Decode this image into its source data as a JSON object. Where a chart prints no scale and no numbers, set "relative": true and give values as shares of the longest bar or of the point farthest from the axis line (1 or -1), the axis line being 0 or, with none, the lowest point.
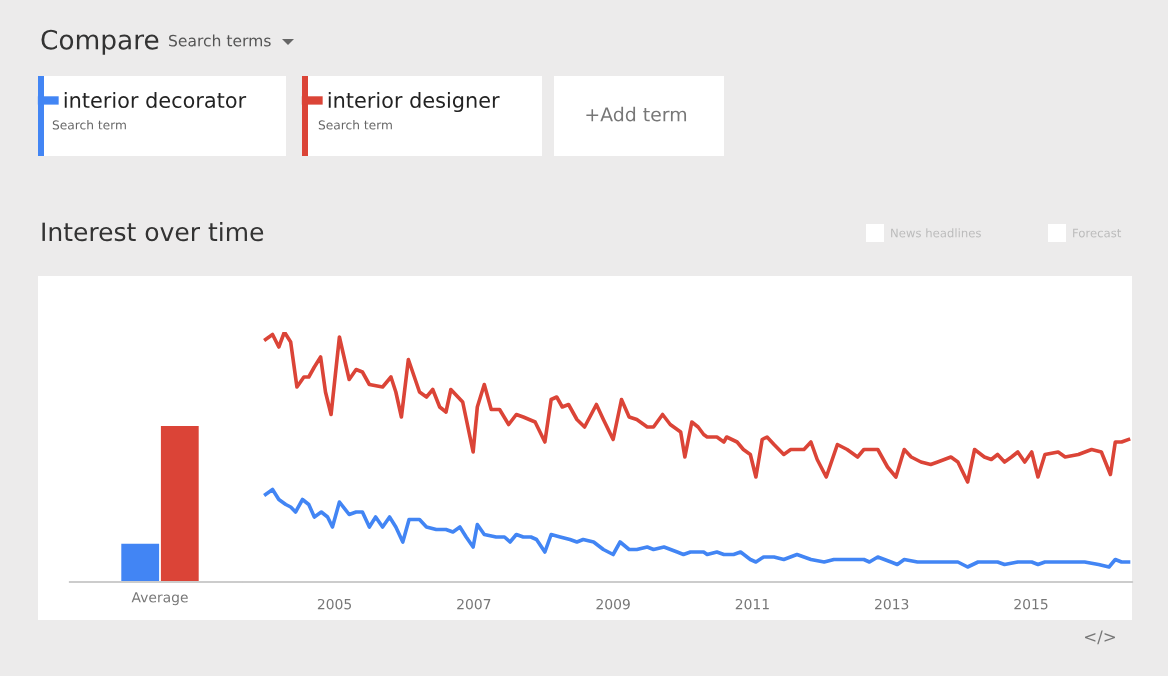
{
  "chart_data": [
    {
      "type": "other",
      "title": "Compare",
      "annotations": [
        "Search terms",
        "Search term",
        "Search term",
        "+Add term",
        "News headlines",
        "Forecast",
        "</>"
      ]
    },
    {
      "type": "bar",
      "relative": true,
      "categories": [
        "Average"
      ],
      "series": [
        {
          "color": "#4285f4",
          "values": [
            0.245
          ]
        },
        {
          "color": "#db4437",
          "values": [
            1
          ]
        }
      ]
    },
    {
      "type": "line",
      "title": "Interest over time",
      "relative": true,
      "legend": "top left",
      "xlim": [
        2003.7,
        2016.45
      ],
      "xticks": [
        2005,
        2007,
        2009,
        2011,
        2013,
        2015
      ],
      "line_style": "solid",
      "marker": "none",
      "series": [
        {
          "name": "interior decorator",
          "color": "#4285f4",
          "x": [
            2004.01,
            2004.11,
            2004.2,
            2004.3,
            2004.37,
            2004.44,
            2004.54,
            2004.63,
            2004.71,
            2004.81,
            2004.9,
            2004.97,
            2005.07,
            2005.21,
            2005.31,
            2005.4,
            2005.5,
            2005.59,
            2005.69,
            2005.79,
            2005.88,
            2005.98,
            2006.07,
            2006.22,
            2006.32,
            2006.46,
            2006.6,
            2006.7,
            2006.8,
            2006.89,
            2006.99,
            2007.05,
            2007.15,
            2007.32,
            2007.44,
            2007.52,
            2007.61,
            2007.71,
            2007.82,
            2007.9,
            2008.02,
            2008.11,
            2008.24,
            2008.38,
            2008.48,
            2008.57,
            2008.72,
            2008.86,
            2009.0,
            2009.1,
            2009.23,
            2009.34,
            2009.49,
            2009.58,
            2009.73,
            2009.92,
            2010.01,
            2010.11,
            2010.3,
            2010.35,
            2010.49,
            2010.59,
            2010.73,
            2010.83,
            2010.97,
            2011.05,
            2011.16,
            2011.31,
            2011.45,
            2011.64,
            2011.84,
            2012.03,
            2012.17,
            2012.41,
            2012.6,
            2012.68,
            2012.8,
            2012.99,
            2013.08,
            2013.18,
            2013.37,
            2013.66,
            2013.85,
            2013.95,
            2014.09,
            2014.24,
            2014.52,
            2014.62,
            2014.81,
            2015.01,
            2015.1,
            2015.2,
            2015.39,
            2015.77,
            2015.97,
            2016.12,
            2016.21,
            2016.3,
            2016.4
          ],
          "values": [
            0.35,
            0.37,
            0.33,
            0.31,
            0.3,
            0.28,
            0.33,
            0.31,
            0.26,
            0.28,
            0.26,
            0.22,
            0.32,
            0.27,
            0.28,
            0.28,
            0.22,
            0.26,
            0.22,
            0.26,
            0.22,
            0.16,
            0.25,
            0.25,
            0.22,
            0.21,
            0.21,
            0.2,
            0.22,
            0.18,
            0.14,
            0.23,
            0.19,
            0.18,
            0.18,
            0.16,
            0.19,
            0.18,
            0.18,
            0.17,
            0.12,
            0.19,
            0.18,
            0.17,
            0.16,
            0.17,
            0.16,
            0.13,
            0.11,
            0.16,
            0.13,
            0.13,
            0.14,
            0.13,
            0.14,
            0.12,
            0.11,
            0.12,
            0.12,
            0.11,
            0.12,
            0.11,
            0.11,
            0.12,
            0.09,
            0.08,
            0.1,
            0.1,
            0.09,
            0.11,
            0.09,
            0.08,
            0.09,
            0.09,
            0.09,
            0.08,
            0.1,
            0.08,
            0.07,
            0.09,
            0.08,
            0.08,
            0.08,
            0.08,
            0.06,
            0.08,
            0.08,
            0.07,
            0.08,
            0.08,
            0.07,
            0.08,
            0.08,
            0.08,
            0.07,
            0.06,
            0.09,
            0.08,
            0.08
          ]
        },
        {
          "name": "interior designer",
          "color": "#db4437",
          "x": [
            2004.01,
            2004.11,
            2004.2,
            2004.28,
            2004.37,
            2004.46,
            2004.56,
            2004.63,
            2004.71,
            2004.8,
            2004.87,
            2004.95,
            2005.07,
            2005.21,
            2005.31,
            2005.4,
            2005.5,
            2005.69,
            2005.81,
            2005.88,
            2005.96,
            2006.06,
            2006.22,
            2006.32,
            2006.41,
            2006.51,
            2006.6,
            2006.67,
            2006.84,
            2006.99,
            2007.05,
            2007.15,
            2007.25,
            2007.37,
            2007.5,
            2007.61,
            2007.71,
            2007.88,
            2008.02,
            2008.11,
            2008.19,
            2008.27,
            2008.36,
            2008.48,
            2008.59,
            2008.76,
            2008.86,
            2009.0,
            2009.12,
            2009.23,
            2009.34,
            2009.49,
            2009.58,
            2009.71,
            2009.82,
            2009.97,
            2010.03,
            2010.13,
            2010.22,
            2010.3,
            2010.35,
            2010.49,
            2010.59,
            2010.63,
            2010.78,
            2010.87,
            2010.97,
            2011.05,
            2011.14,
            2011.21,
            2011.31,
            2011.45,
            2011.55,
            2011.74,
            2011.84,
            2011.93,
            2012.06,
            2012.22,
            2012.36,
            2012.51,
            2012.6,
            2012.8,
            2012.94,
            2013.06,
            2013.18,
            2013.28,
            2013.42,
            2013.56,
            2013.66,
            2013.85,
            2013.95,
            2014.09,
            2014.19,
            2014.33,
            2014.43,
            2014.52,
            2014.62,
            2014.72,
            2014.81,
            2014.91,
            2015.01,
            2015.1,
            2015.2,
            2015.39,
            2015.49,
            2015.68,
            2015.87,
            2016.01,
            2016.14,
            2016.21,
            2016.3,
            2016.4
          ],
          "values": [
            0.97,
            0.99,
            0.94,
            1.0,
            0.96,
            0.78,
            0.82,
            0.82,
            0.86,
            0.9,
            0.76,
            0.67,
            0.98,
            0.81,
            0.85,
            0.84,
            0.79,
            0.78,
            0.82,
            0.76,
            0.66,
            0.89,
            0.76,
            0.74,
            0.77,
            0.7,
            0.68,
            0.77,
            0.72,
            0.52,
            0.7,
            0.79,
            0.69,
            0.69,
            0.63,
            0.67,
            0.66,
            0.64,
            0.56,
            0.73,
            0.74,
            0.7,
            0.71,
            0.65,
            0.62,
            0.71,
            0.65,
            0.57,
            0.73,
            0.66,
            0.65,
            0.62,
            0.62,
            0.67,
            0.63,
            0.6,
            0.5,
            0.64,
            0.62,
            0.59,
            0.58,
            0.58,
            0.56,
            0.58,
            0.56,
            0.53,
            0.51,
            0.42,
            0.57,
            0.58,
            0.55,
            0.51,
            0.53,
            0.53,
            0.56,
            0.49,
            0.42,
            0.55,
            0.53,
            0.5,
            0.53,
            0.53,
            0.46,
            0.42,
            0.53,
            0.5,
            0.48,
            0.47,
            0.48,
            0.5,
            0.48,
            0.4,
            0.53,
            0.5,
            0.49,
            0.51,
            0.48,
            0.5,
            0.52,
            0.48,
            0.52,
            0.42,
            0.51,
            0.52,
            0.5,
            0.51,
            0.53,
            0.52,
            0.43,
            0.56,
            0.56,
            0.57
          ]
        }
      ]
    }
  ]
}
